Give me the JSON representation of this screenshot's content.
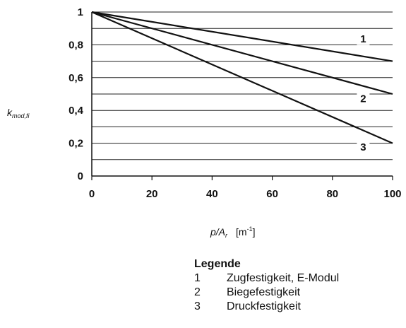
{
  "chart_data": {
    "type": "line",
    "xlabel": {
      "main": "p/A",
      "sub": "r",
      "unit": "[m",
      "unit_sup": "-1",
      "unit_close": "]"
    },
    "ylabel": {
      "main": "k",
      "sub": "mod,fi"
    },
    "xlim": [
      0,
      100
    ],
    "ylim": [
      0,
      1
    ],
    "x_ticks": [
      0,
      20,
      40,
      60,
      80,
      100
    ],
    "x_tick_labels": [
      "0",
      "20",
      "40",
      "60",
      "80",
      "100"
    ],
    "y_ticks": [
      0,
      0.2,
      0.4,
      0.6,
      0.8,
      1
    ],
    "y_tick_labels": [
      "0",
      "0,2",
      "0,4",
      "0,6",
      "0,8",
      "1"
    ],
    "grid": true,
    "series": [
      {
        "name": "1",
        "x": [
          0,
          100
        ],
        "y": [
          1.0,
          0.7
        ],
        "label_at": [
          90,
          0.82
        ]
      },
      {
        "name": "2",
        "x": [
          0,
          100
        ],
        "y": [
          1.0,
          0.5
        ],
        "label_at": [
          90,
          0.455
        ]
      },
      {
        "name": "3",
        "x": [
          0,
          100
        ],
        "y": [
          1.0,
          0.2
        ],
        "label_at": [
          90,
          0.16
        ]
      }
    ]
  },
  "legend": {
    "title": "Legende",
    "items": [
      {
        "num": "1",
        "text": "Zugfestigkeit, E-Modul"
      },
      {
        "num": "2",
        "text": "Biegefestigkeit"
      },
      {
        "num": "3",
        "text": "Druckfestigkeit"
      }
    ]
  }
}
